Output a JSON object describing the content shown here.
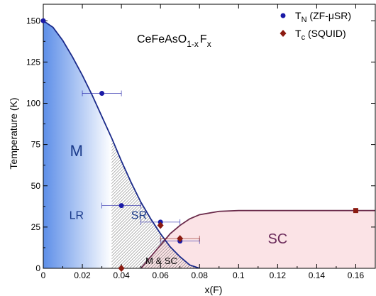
{
  "chart_data": {
    "type": "scatter",
    "title": "",
    "formula": {
      "base": "CeFeAsO",
      "sub1": "1-x",
      "mid": "F",
      "sub2": "x"
    },
    "xlabel": "x(F)",
    "ylabel": "Temperature (K)",
    "xlim": [
      0,
      0.17
    ],
    "ylim": [
      0,
      160
    ],
    "xticks": [
      0,
      0.02,
      0.04,
      0.06,
      0.08,
      0.1,
      0.12,
      0.14,
      0.16
    ],
    "xtick_labels": [
      "0",
      "0.02",
      "0.04",
      "0.06",
      "0.08",
      "0.1",
      "0.12",
      "0.14",
      "0.16"
    ],
    "yticks": [
      0,
      25,
      50,
      75,
      100,
      125,
      150
    ],
    "ytick_labels": [
      "0",
      "25",
      "50",
      "75",
      "100",
      "125",
      "150"
    ],
    "legend_position": "top-right",
    "series": [
      {
        "name": "T",
        "name_sub": "N",
        "name_rest": " (ZF-μSR)",
        "marker": "circle",
        "color": "#1a1aa6",
        "points": [
          {
            "x": 0.0,
            "y": 150,
            "xerr": 0
          },
          {
            "x": 0.03,
            "y": 106,
            "xerr": 0.01
          },
          {
            "x": 0.04,
            "y": 38,
            "xerr": 0.01
          },
          {
            "x": 0.06,
            "y": 28,
            "xerr": 0.01
          },
          {
            "x": 0.07,
            "y": 16.5,
            "xerr": 0.01
          }
        ]
      },
      {
        "name": "T",
        "name_sub": "c",
        "name_rest": " (SQUID)",
        "marker": "diamond",
        "color": "#8b1a10",
        "points": [
          {
            "x": 0.04,
            "y": 0,
            "xerr": 0
          },
          {
            "x": 0.06,
            "y": 26,
            "xerr": 0
          },
          {
            "x": 0.07,
            "y": 18,
            "xerr": 0.01
          },
          {
            "x": 0.16,
            "y": 35,
            "xerr": 0
          }
        ]
      }
    ],
    "curves": {
      "tn_boundary": {
        "color": "#1a2a8a",
        "points": [
          [
            0,
            150
          ],
          [
            0.005,
            146
          ],
          [
            0.01,
            138
          ],
          [
            0.015,
            128
          ],
          [
            0.02,
            117
          ],
          [
            0.025,
            105
          ],
          [
            0.03,
            92
          ],
          [
            0.035,
            79
          ],
          [
            0.04,
            65
          ],
          [
            0.045,
            52
          ],
          [
            0.05,
            40
          ],
          [
            0.055,
            30
          ],
          [
            0.06,
            21
          ],
          [
            0.065,
            13
          ],
          [
            0.07,
            7
          ],
          [
            0.075,
            2
          ],
          [
            0.08,
            0
          ]
        ]
      },
      "tc_boundary": {
        "color": "#6a2a4a",
        "points": [
          [
            0.05,
            0
          ],
          [
            0.055,
            7
          ],
          [
            0.06,
            14
          ],
          [
            0.065,
            21
          ],
          [
            0.07,
            26
          ],
          [
            0.075,
            30
          ],
          [
            0.08,
            32.5
          ],
          [
            0.09,
            34.5
          ],
          [
            0.1,
            35
          ],
          [
            0.17,
            35
          ]
        ]
      }
    },
    "regions": [
      {
        "id": "M",
        "label": "M",
        "color": "#1a3a8a"
      },
      {
        "id": "LR",
        "label": "LR",
        "color": "#1a3a8a"
      },
      {
        "id": "SR",
        "label": "SR",
        "color": "#1a3a8a"
      },
      {
        "id": "SC",
        "label": "SC",
        "color": "#6a2a5a"
      },
      {
        "id": "MSC",
        "label": "M & SC",
        "color": "#000000"
      }
    ],
    "colors": {
      "m_region_dark": "#5d8ee8",
      "m_region_light": "#ffffff",
      "sc_region": "#fbe3e6",
      "sr_hatch": "#444444"
    }
  }
}
